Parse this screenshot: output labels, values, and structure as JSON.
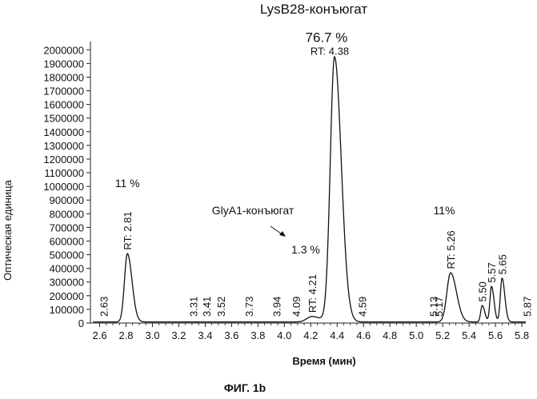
{
  "chart_data": {
    "type": "line",
    "title": "LysB28-конъюгат",
    "xlabel": "Время (мин)",
    "ylabel": "Оптическая единица",
    "caption": "ФИГ. 1b",
    "xlim": [
      2.53,
      5.83
    ],
    "ylim": [
      0,
      2060000
    ],
    "x_ticks": [
      "2.6",
      "2.8",
      "3.0",
      "3.2",
      "3.4",
      "3.6",
      "3.8",
      "4.0",
      "4.2",
      "4.4",
      "4.6",
      "4.8",
      "5.0",
      "5.2",
      "5.4",
      "5.6",
      "5.8"
    ],
    "y_ticks": [
      "0",
      "100000",
      "200000",
      "300000",
      "400000",
      "500000",
      "600000",
      "700000",
      "800000",
      "900000",
      "1000000",
      "1100000",
      "1200000",
      "1300000",
      "1400000",
      "1500000",
      "1600000",
      "1700000",
      "1800000",
      "1900000",
      "2000000"
    ],
    "peaks": [
      {
        "rt": 2.81,
        "height": 500000,
        "label": "RT: 2.81",
        "percent": "11 %"
      },
      {
        "rt": 4.21,
        "height": 40000,
        "label": "RT: 4.21",
        "percent": "1.3 %",
        "name": "GlyA1-конъюгат"
      },
      {
        "rt": 4.38,
        "height": 1940000,
        "label": "RT: 4.38",
        "percent": "76.7 %",
        "name": "LysB28-конъюгат"
      },
      {
        "rt": 5.26,
        "height": 360000,
        "label": "RT: 5.26",
        "percent": "11%"
      },
      {
        "rt": 5.5,
        "height": 120000,
        "label": "5.50"
      },
      {
        "rt": 5.57,
        "height": 260000,
        "label": "5.57"
      },
      {
        "rt": 5.65,
        "height": 320000,
        "label": "5.65"
      }
    ],
    "minor_labels": [
      "2.63",
      "3.31",
      "3.41",
      "3.52",
      "3.73",
      "3.94",
      "4.09",
      "4.59",
      "5.13",
      "5.17",
      "5.87"
    ],
    "minor_label_rts": [
      2.63,
      3.31,
      3.41,
      3.52,
      3.73,
      3.94,
      4.09,
      4.59,
      5.13,
      5.17,
      5.87
    ],
    "annotation_glya1": "GlyA1-конъюгат"
  }
}
